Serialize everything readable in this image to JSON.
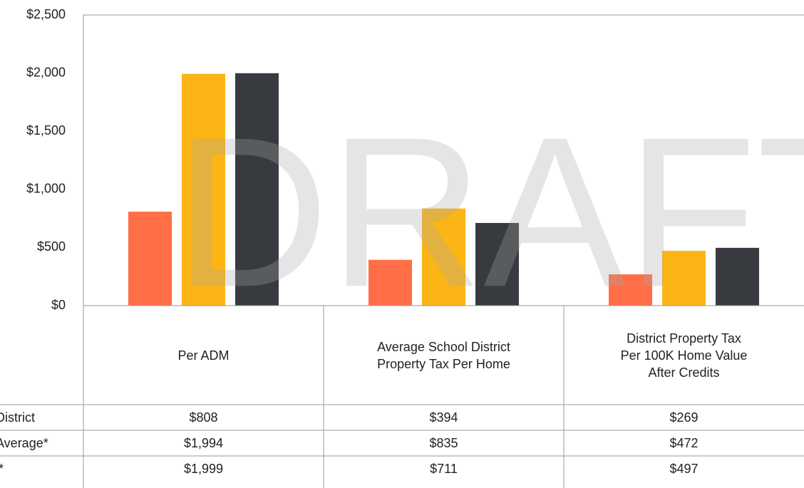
{
  "chart_data": {
    "type": "bar",
    "watermark": "DRAFT",
    "categories": [
      "Per ADM",
      "Average School District Property Tax Per Home",
      "District Property Tax Per 100K Home Value After Credits"
    ],
    "series": [
      {
        "name": "District",
        "color": "#ff6e47",
        "values": [
          808,
          394,
          269
        ],
        "value_labels": [
          "$808",
          "$394",
          "$269"
        ]
      },
      {
        "name": "Average*",
        "color": "#fdb515",
        "values": [
          1994,
          835,
          472
        ],
        "value_labels": [
          "$1,994",
          "$835",
          "$472"
        ]
      },
      {
        "name": "*",
        "color": "#373b3f",
        "values": [
          1999,
          711,
          497
        ],
        "value_labels": [
          "$1,999",
          "$711",
          "$497"
        ]
      }
    ],
    "ylim": [
      0,
      2500
    ],
    "yticks": [
      {
        "value": 0,
        "label": "$0"
      },
      {
        "value": 500,
        "label": "$500"
      },
      {
        "value": 1000,
        "label": "$1,000"
      },
      {
        "value": 1500,
        "label": "$1,500"
      },
      {
        "value": 2000,
        "label": "$2,000"
      },
      {
        "value": 2500,
        "label": "$2,500"
      }
    ],
    "grid": false
  }
}
